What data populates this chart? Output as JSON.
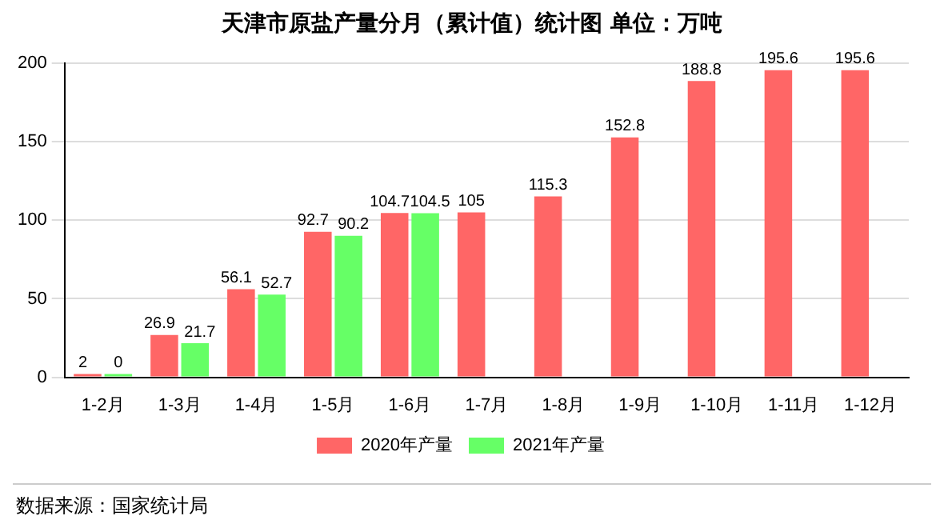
{
  "chart_data": {
    "type": "bar",
    "title": "天津市原盐产量分月（累计值）统计图  单位：万吨",
    "categories": [
      "1-2月",
      "1-3月",
      "1-4月",
      "1-5月",
      "1-6月",
      "1-7月",
      "1-8月",
      "1-9月",
      "1-10月",
      "1-11月",
      "1-12月"
    ],
    "series": [
      {
        "name": "2020年产量",
        "color": "#ff6666",
        "values": [
          2,
          26.9,
          56.1,
          92.7,
          104.7,
          105,
          115.3,
          152.8,
          188.8,
          195.6,
          195.6
        ]
      },
      {
        "name": "2021年产量",
        "color": "#66ff66",
        "values": [
          0,
          21.7,
          52.7,
          90.2,
          104.5,
          null,
          null,
          null,
          null,
          null,
          null
        ]
      }
    ],
    "ylim": [
      0,
      200
    ],
    "yticks": [
      0,
      50,
      100,
      150,
      200
    ],
    "grid": "y",
    "legend": "bottom",
    "data_labels": true,
    "annotations": [
      "数据来源：国家统计局"
    ]
  }
}
